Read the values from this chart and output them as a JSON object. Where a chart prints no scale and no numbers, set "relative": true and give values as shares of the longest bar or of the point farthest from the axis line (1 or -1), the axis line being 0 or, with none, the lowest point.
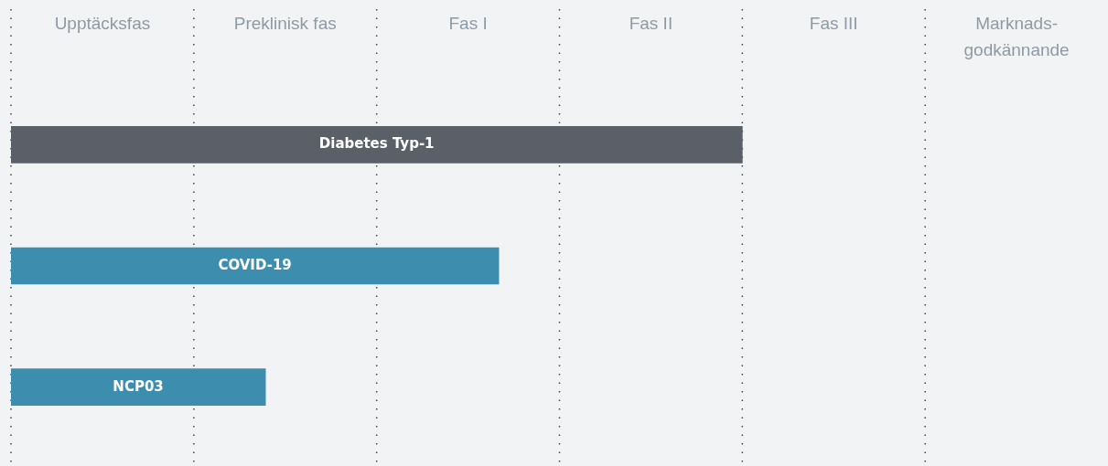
{
  "chart_data": {
    "type": "bar",
    "orientation": "horizontal",
    "relative": true,
    "categories": [
      "Diabetes Typ-1",
      "COVID-19",
      "NCP03"
    ],
    "values": [
      1,
      0.667,
      0.348
    ],
    "colors": [
      "#5b6068",
      "#3d8eae",
      "#3d8eae"
    ],
    "annotations": [
      "Upptäcksfas",
      "Preklinisk fas",
      "Fas I",
      "Fas II",
      "Fas III",
      "Marknads-\ngodkännande"
    ],
    "grid": "x",
    "legend": false
  }
}
